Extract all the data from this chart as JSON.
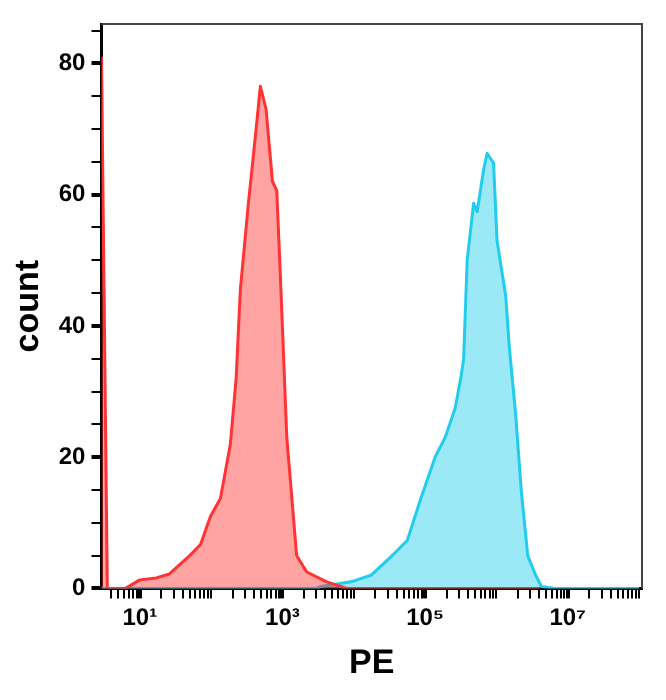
{
  "chart_data": {
    "type": "area",
    "xlabel": "PE",
    "ylabel": "count",
    "log": "x",
    "grid": false,
    "legend": false,
    "marker": "none",
    "xlim": [
      2.9,
      110000000
    ],
    "ylim": [
      0,
      86
    ],
    "xticks": [
      {
        "value": 4,
        "label": null
      },
      {
        "value": 5,
        "label": null
      },
      {
        "value": 6,
        "label": null
      },
      {
        "value": 7,
        "label": null
      },
      {
        "value": 8,
        "label": null
      },
      {
        "value": 9,
        "label": null
      },
      {
        "value": 10,
        "label": "10¹"
      },
      {
        "value": 20,
        "label": null
      },
      {
        "value": 30,
        "label": null
      },
      {
        "value": 40,
        "label": null
      },
      {
        "value": 50,
        "label": null
      },
      {
        "value": 60,
        "label": null
      },
      {
        "value": 70,
        "label": null
      },
      {
        "value": 80,
        "label": null
      },
      {
        "value": 90,
        "label": null
      },
      {
        "value": 100,
        "label": null
      },
      {
        "value": 200,
        "label": null
      },
      {
        "value": 300,
        "label": null
      },
      {
        "value": 400,
        "label": null
      },
      {
        "value": 500,
        "label": null
      },
      {
        "value": 600,
        "label": null
      },
      {
        "value": 700,
        "label": null
      },
      {
        "value": 800,
        "label": null
      },
      {
        "value": 900,
        "label": null
      },
      {
        "value": 1000,
        "label": "10³"
      },
      {
        "value": 2000,
        "label": null
      },
      {
        "value": 3000,
        "label": null
      },
      {
        "value": 4000,
        "label": null
      },
      {
        "value": 5000,
        "label": null
      },
      {
        "value": 6000,
        "label": null
      },
      {
        "value": 7000,
        "label": null
      },
      {
        "value": 8000,
        "label": null
      },
      {
        "value": 9000,
        "label": null
      },
      {
        "value": 10000,
        "label": null
      },
      {
        "value": 20000,
        "label": null
      },
      {
        "value": 30000,
        "label": null
      },
      {
        "value": 40000,
        "label": null
      },
      {
        "value": 50000,
        "label": null
      },
      {
        "value": 60000,
        "label": null
      },
      {
        "value": 70000,
        "label": null
      },
      {
        "value": 80000,
        "label": null
      },
      {
        "value": 90000,
        "label": null
      },
      {
        "value": 100000,
        "label": "10⁵"
      },
      {
        "value": 200000,
        "label": null
      },
      {
        "value": 300000,
        "label": null
      },
      {
        "value": 400000,
        "label": null
      },
      {
        "value": 500000,
        "label": null
      },
      {
        "value": 600000,
        "label": null
      },
      {
        "value": 700000,
        "label": null
      },
      {
        "value": 800000,
        "label": null
      },
      {
        "value": 900000,
        "label": null
      },
      {
        "value": 1000000,
        "label": null
      },
      {
        "value": 2000000,
        "label": null
      },
      {
        "value": 3000000,
        "label": null
      },
      {
        "value": 4000000,
        "label": null
      },
      {
        "value": 5000000,
        "label": null
      },
      {
        "value": 6000000,
        "label": null
      },
      {
        "value": 7000000,
        "label": null
      },
      {
        "value": 8000000,
        "label": null
      },
      {
        "value": 9000000,
        "label": null
      },
      {
        "value": 10000000,
        "label": "10⁷"
      },
      {
        "value": 20000000,
        "label": null
      },
      {
        "value": 30000000,
        "label": null
      },
      {
        "value": 40000000,
        "label": null
      },
      {
        "value": 50000000,
        "label": null
      },
      {
        "value": 60000000,
        "label": null
      },
      {
        "value": 70000000,
        "label": null
      },
      {
        "value": 80000000,
        "label": null
      },
      {
        "value": 90000000,
        "label": null
      },
      {
        "value": 100000000,
        "label": null
      }
    ],
    "yticks": [
      0,
      {
        "value": 5,
        "label": null
      },
      {
        "value": 10,
        "label": null
      },
      {
        "value": 15,
        "label": null
      },
      20,
      {
        "value": 25,
        "label": null
      },
      {
        "value": 30,
        "label": null
      },
      {
        "value": 35,
        "label": null
      },
      40,
      {
        "value": 45,
        "label": null
      },
      {
        "value": 50,
        "label": null
      },
      {
        "value": 55,
        "label": null
      },
      60,
      {
        "value": 65,
        "label": null
      },
      {
        "value": 70,
        "label": null
      },
      {
        "value": 75,
        "label": null
      },
      80,
      {
        "value": 85,
        "label": null
      }
    ],
    "series": [
      {
        "color": "#ff3333",
        "x": [
          2.9,
          3.5,
          6.3,
          10,
          17,
          26,
          50,
          71,
          98,
          135,
          186,
          224,
          257,
          331,
          427,
          490,
          589,
          724,
          832,
          933,
          1150,
          1580,
          2190,
          4170,
          7940,
          3980000
        ],
        "values": [
          81,
          0,
          0,
          1.3,
          1.6,
          2.2,
          5,
          6.7,
          11,
          13.7,
          22,
          32,
          45.6,
          58.4,
          70,
          76.5,
          73,
          62,
          60.6,
          47.8,
          23,
          5,
          2.5,
          1,
          0,
          0
        ]
      },
      {
        "color": "#22ccee",
        "x": [
          2.9,
          3000,
          3470,
          9120,
          17400,
          33100,
          56200,
          87100,
          138000,
          191000,
          263000,
          316000,
          347000,
          389000,
          479000,
          537000,
          661000,
          741000,
          912000,
          1020000,
          1350000,
          1510000,
          1860000,
          2240000,
          2750000,
          3550000,
          4270000,
          6760000,
          100000000
        ],
        "values": [
          0,
          0,
          0.3,
          1,
          2,
          4.8,
          7.3,
          13.7,
          20,
          23,
          27.4,
          32,
          35,
          50,
          58.7,
          57.4,
          63.8,
          66.3,
          64.8,
          53,
          44.6,
          37,
          26.5,
          14.7,
          5,
          2,
          0.3,
          0,
          0
        ]
      }
    ]
  }
}
